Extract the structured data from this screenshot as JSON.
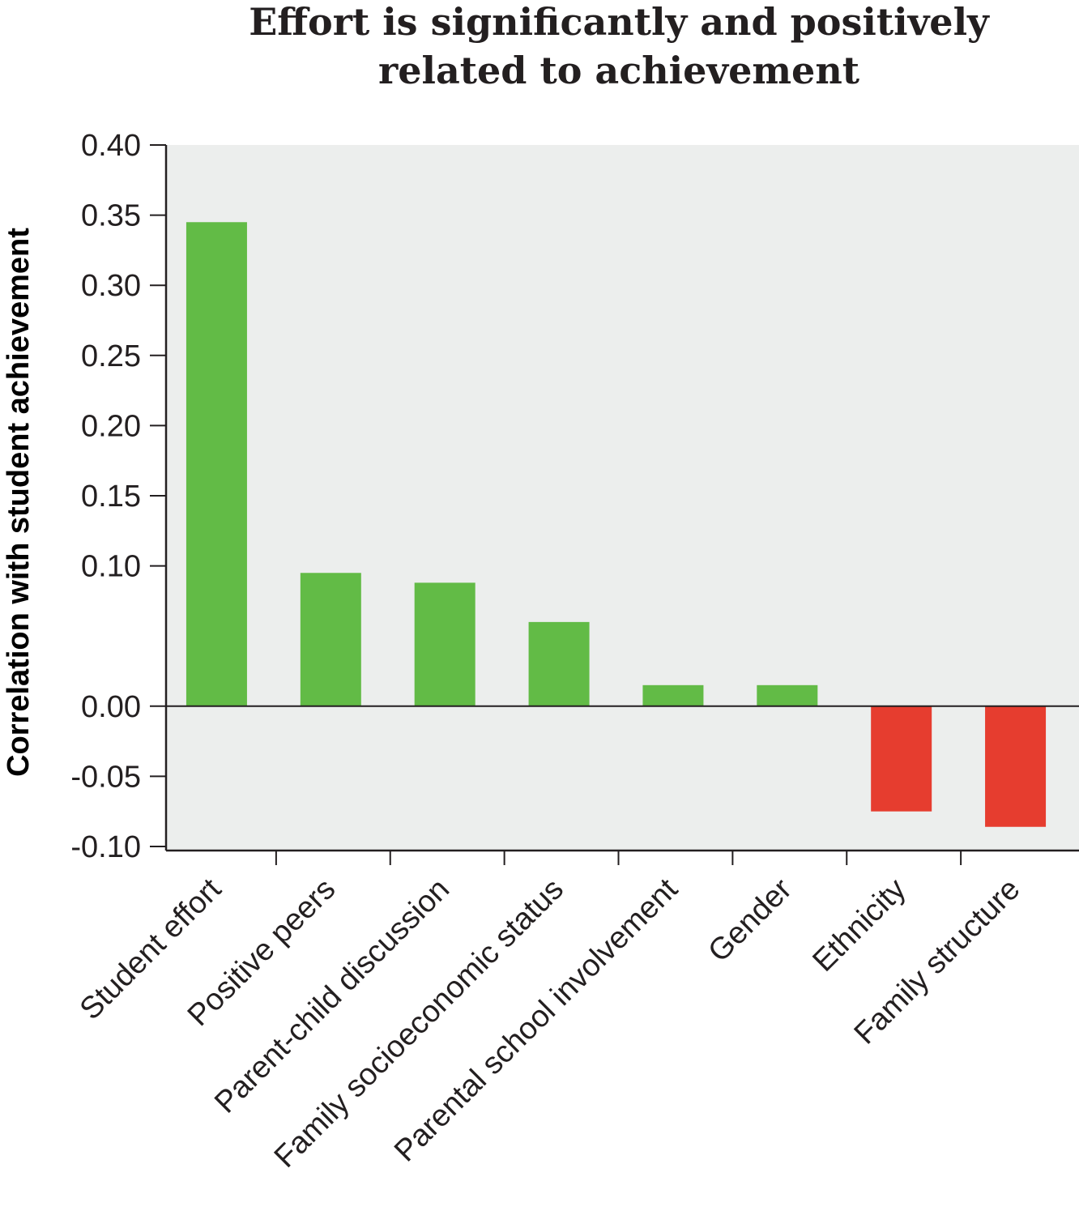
{
  "chart_data": {
    "type": "bar",
    "title_lines": [
      "Effort is significantly and positively",
      "related to achievement"
    ],
    "xlabel": "",
    "ylabel": "Correlation with student achievement",
    "categories": [
      "Student effort",
      "Positive peers",
      "Parent-child discussion",
      "Family socioeconomic status",
      "Parental school involvement",
      "Gender",
      "Ethnicity",
      "Family structure"
    ],
    "values": [
      0.345,
      0.095,
      0.088,
      0.06,
      0.015,
      0.015,
      -0.075,
      -0.086
    ],
    "ylim": [
      -0.1,
      0.4
    ],
    "yticks": [
      "0.40",
      "0.35",
      "0.30",
      "0.25",
      "0.20",
      "0.15",
      "0.10",
      "0.00",
      "-0.05",
      "-0.10"
    ],
    "ytick_values": [
      0.4,
      0.35,
      0.3,
      0.25,
      0.2,
      0.15,
      0.1,
      0.0,
      -0.05,
      -0.1
    ],
    "grid": false,
    "colors": {
      "positive": "#62bb46",
      "negative": "#e63d2f",
      "plot_background": "#eceeed",
      "axis": "#231f20"
    }
  }
}
